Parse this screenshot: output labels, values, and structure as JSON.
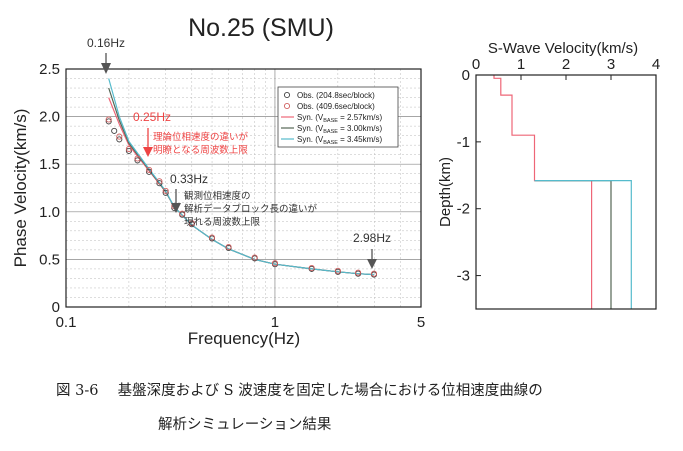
{
  "chart_data": [
    {
      "type": "scatter",
      "title": "No.25 (SMU)",
      "xlabel": "Frequency(Hz)",
      "ylabel": "Phase Velocity(km/s)",
      "x_scale": "log",
      "xlim": [
        0.1,
        5
      ],
      "ylim": [
        0,
        2.5
      ],
      "x_ticks": [
        "0.1",
        "1",
        "5"
      ],
      "y_ticks": [
        "0",
        "0.5",
        "1.0",
        "1.5",
        "2.0",
        "2.5"
      ],
      "grid": true,
      "legend_position": "top-right",
      "legend": {
        "obs1": "Obs. (204.8sec/block)",
        "obs2": "Obs. (409.6sec/block)",
        "syn_prefix": "Syn. (V",
        "syn_sub": "BASE",
        "syn1_suffix": " = 2.57km/s)",
        "syn2_suffix": " = 3.00km/s)",
        "syn3_suffix": " = 3.45km/s)"
      },
      "series": [
        {
          "name": "Obs. (204.8sec/block)",
          "style": "marker",
          "color": "#444444",
          "x": [
            0.16,
            0.17,
            0.18,
            0.2,
            0.22,
            0.25,
            0.28,
            0.3,
            0.33,
            0.36,
            0.4,
            0.5,
            0.6,
            0.8,
            1.0,
            1.5,
            2.0,
            2.5,
            2.98
          ],
          "y": [
            1.95,
            1.85,
            1.76,
            1.64,
            1.54,
            1.42,
            1.3,
            1.2,
            1.04,
            0.97,
            0.87,
            0.72,
            0.62,
            0.51,
            0.45,
            0.4,
            0.37,
            0.35,
            0.34
          ]
        },
        {
          "name": "Obs. (409.6sec/block)",
          "style": "marker",
          "color": "#d06060",
          "x": [
            0.16,
            0.18,
            0.2,
            0.22,
            0.25,
            0.28,
            0.3,
            0.33,
            0.36,
            0.4,
            0.5,
            0.6,
            0.8,
            1.0,
            1.5,
            2.0,
            2.5,
            2.98
          ],
          "y": [
            1.97,
            1.79,
            1.66,
            1.56,
            1.44,
            1.32,
            1.22,
            1.06,
            0.98,
            0.88,
            0.73,
            0.63,
            0.52,
            0.46,
            0.41,
            0.38,
            0.36,
            0.35
          ]
        },
        {
          "name": "Syn. (VBASE = 2.57km/s)",
          "style": "line",
          "color": "#ee6677",
          "x": [
            0.16,
            0.18,
            0.2,
            0.25,
            0.3,
            0.33,
            0.4,
            0.5,
            0.6,
            0.8,
            1.0,
            1.5,
            2.0,
            2.5,
            2.98
          ],
          "y": [
            2.2,
            1.92,
            1.7,
            1.43,
            1.21,
            1.05,
            0.86,
            0.71,
            0.61,
            0.5,
            0.45,
            0.4,
            0.37,
            0.35,
            0.34
          ]
        },
        {
          "name": "Syn. (VBASE = 3.00km/s)",
          "style": "line",
          "color": "#556655",
          "x": [
            0.16,
            0.18,
            0.2,
            0.25,
            0.3,
            0.33,
            0.4,
            0.5,
            0.6,
            0.8,
            1.0,
            1.5,
            2.0,
            2.5,
            2.98
          ],
          "y": [
            2.3,
            1.96,
            1.72,
            1.44,
            1.21,
            1.05,
            0.86,
            0.71,
            0.61,
            0.5,
            0.45,
            0.4,
            0.37,
            0.35,
            0.34
          ]
        },
        {
          "name": "Syn. (VBASE = 3.45km/s)",
          "style": "line",
          "color": "#55bbcc",
          "x": [
            0.16,
            0.18,
            0.2,
            0.25,
            0.3,
            0.33,
            0.4,
            0.5,
            0.6,
            0.8,
            1.0,
            1.5,
            2.0,
            2.5,
            2.98
          ],
          "y": [
            2.4,
            2.0,
            1.74,
            1.45,
            1.22,
            1.05,
            0.86,
            0.71,
            0.61,
            0.5,
            0.45,
            0.4,
            0.37,
            0.35,
            0.34
          ]
        }
      ],
      "annotations": [
        {
          "label": "0.16Hz",
          "x": 0.16,
          "y": 2.5,
          "color": "#333333",
          "note": ""
        },
        {
          "label": "0.25Hz",
          "x": 0.25,
          "y": 1.7,
          "color": "#ee4444",
          "note_lines": [
            "理論位相速度の違いが",
            "明瞭となる周波数上限"
          ]
        },
        {
          "label": "0.33Hz",
          "x": 0.33,
          "y": 1.05,
          "color": "#333333",
          "note_lines": [
            "観測位相速度の",
            "解析データブロック長の違いが",
            "現れる周波数上限"
          ]
        },
        {
          "label": "2.98Hz",
          "x": 2.98,
          "y": 0.36,
          "color": "#333333",
          "note": ""
        }
      ]
    },
    {
      "type": "line",
      "title": "S-Wave Velocity(km/s)",
      "ylabel": "Depth(km)",
      "xlim": [
        0,
        4
      ],
      "ylim": [
        -3.5,
        0
      ],
      "x_ticks": [
        "0",
        "1",
        "2",
        "3",
        "4"
      ],
      "y_ticks": [
        "0",
        "-1",
        "-2",
        "-3"
      ],
      "x_axis_position": "top",
      "series": [
        {
          "name": "VBASE = 2.57km/s",
          "color": "#ee6677",
          "x": [
            0.4,
            0.4,
            0.55,
            0.55,
            0.8,
            0.8,
            1.3,
            1.3,
            2.57,
            2.57
          ],
          "y": [
            0,
            -0.05,
            -0.05,
            -0.3,
            -0.3,
            -0.9,
            -0.9,
            -1.58,
            -1.58,
            -3.5
          ]
        },
        {
          "name": "VBASE = 3.00km/s",
          "color": "#556655",
          "x": [
            1.3,
            3.0,
            3.0
          ],
          "y": [
            -1.58,
            -1.58,
            -3.5
          ]
        },
        {
          "name": "VBASE = 3.45km/s",
          "color": "#55bbcc",
          "x": [
            1.3,
            3.45,
            3.45
          ],
          "y": [
            -1.58,
            -1.58,
            -3.5
          ]
        }
      ]
    }
  ],
  "caption": {
    "line1": "図 3-6　 基盤深度および S 波速度を固定した場合における位相速度曲線の",
    "line2": "解析シミュレーション結果"
  }
}
